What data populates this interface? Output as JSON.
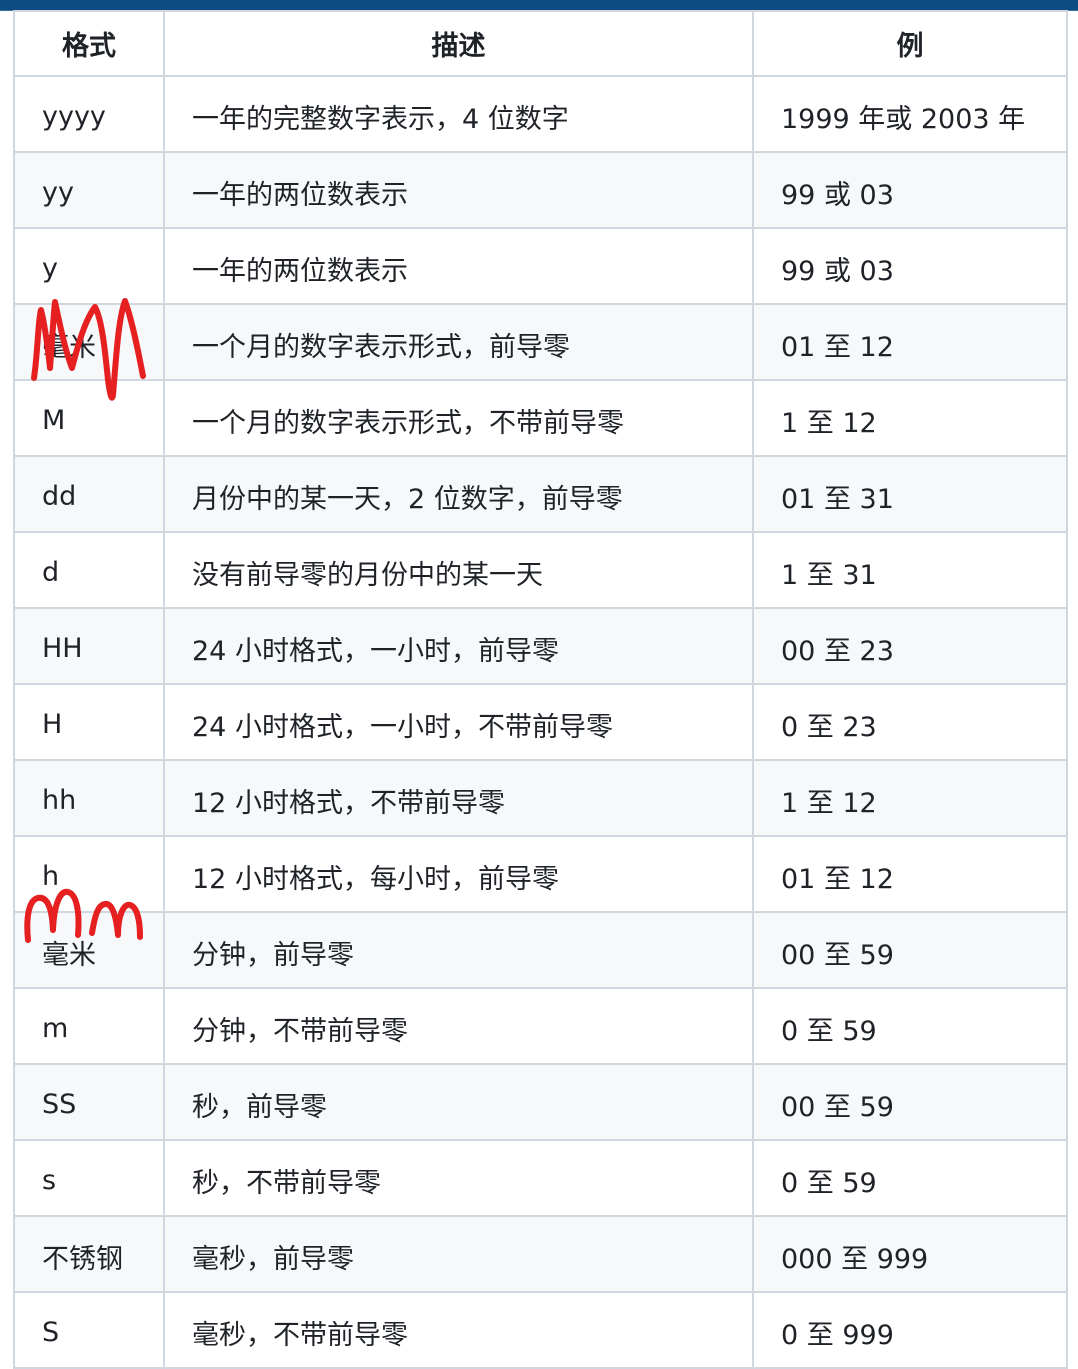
{
  "table": {
    "headers": [
      "格式",
      "描述",
      "例"
    ],
    "rows": [
      [
        "yyyy",
        "一年的完整数字表示，4 位数字",
        "1999 年或 2003 年"
      ],
      [
        "yy",
        "一年的两位数表示",
        "99 或 03"
      ],
      [
        "y",
        "一年的两位数表示",
        "99 或 03"
      ],
      [
        "毫米",
        "一个月的数字表示形式，前导零",
        "01 至 12"
      ],
      [
        "M",
        "一个月的数字表示形式，不带前导零",
        "1 至 12"
      ],
      [
        "dd",
        "月份中的某一天，2 位数字，前导零",
        "01 至 31"
      ],
      [
        "d",
        "没有前导零的月份中的某一天",
        "1 至 31"
      ],
      [
        "HH",
        "24 小时格式，一小时，前导零",
        "00 至 23"
      ],
      [
        "H",
        "24 小时格式，一小时，不带前导零",
        "0 至 23"
      ],
      [
        "hh",
        "12 小时格式，不带前导零",
        "1 至 12"
      ],
      [
        "h",
        "12 小时格式，每小时，前导零",
        "01 至 12"
      ],
      [
        "毫米",
        "分钟，前导零",
        "00 至 59"
      ],
      [
        "m",
        "分钟，不带前导零",
        "0 至 59"
      ],
      [
        "SS",
        "秒，前导零",
        "00 至 59"
      ],
      [
        "s",
        "秒，不带前导零",
        "0 至 59"
      ],
      [
        "不锈钢",
        "毫秒，前导零",
        "000 至 999"
      ],
      [
        "S",
        "毫秒，不带前导零",
        "0 至 999"
      ]
    ]
  },
  "annotations": [
    {
      "text": "MM",
      "color": "#e62020",
      "row": 3
    },
    {
      "text": "mm",
      "color": "#e62020",
      "row": 11
    }
  ],
  "colors": {
    "topbar": "#0f4c81",
    "stripe": "#f6f8fa",
    "border": "#d0d7de"
  }
}
